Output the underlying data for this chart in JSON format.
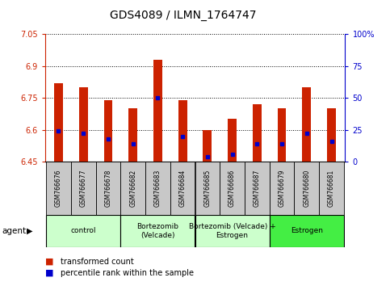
{
  "title": "GDS4089 / ILMN_1764747",
  "samples": [
    "GSM766676",
    "GSM766677",
    "GSM766678",
    "GSM766682",
    "GSM766683",
    "GSM766684",
    "GSM766685",
    "GSM766686",
    "GSM766687",
    "GSM766679",
    "GSM766680",
    "GSM766681"
  ],
  "transformed_counts": [
    6.82,
    6.8,
    6.74,
    6.7,
    6.93,
    6.74,
    6.6,
    6.65,
    6.72,
    6.7,
    6.8,
    6.7
  ],
  "percentile_ranks": [
    24,
    22,
    18,
    14,
    50,
    20,
    4,
    6,
    14,
    14,
    22,
    16
  ],
  "y_min": 6.45,
  "y_max": 7.05,
  "y_ticks": [
    6.45,
    6.6,
    6.75,
    6.9,
    7.05
  ],
  "y_tick_labels": [
    "6.45",
    "6.6",
    "6.75",
    "6.9",
    "7.05"
  ],
  "right_y_ticks": [
    0,
    25,
    50,
    75,
    100
  ],
  "right_y_labels": [
    "0",
    "25",
    "50",
    "75",
    "100%"
  ],
  "groups": [
    {
      "label": "control",
      "start": 0,
      "end": 3,
      "color": "#CCFFCC"
    },
    {
      "label": "Bortezomib\n(Velcade)",
      "start": 3,
      "end": 6,
      "color": "#CCFFCC"
    },
    {
      "label": "Bortezomib (Velcade) +\nEstrogen",
      "start": 6,
      "end": 9,
      "color": "#CCFFCC"
    },
    {
      "label": "Estrogen",
      "start": 9,
      "end": 12,
      "color": "#44EE44"
    }
  ],
  "bar_color": "#CC2200",
  "dot_color": "#0000CC",
  "bar_width": 0.35,
  "agent_label": "agent",
  "legend_items": [
    {
      "label": "transformed count",
      "color": "#CC2200"
    },
    {
      "label": "percentile rank within the sample",
      "color": "#0000CC"
    }
  ]
}
